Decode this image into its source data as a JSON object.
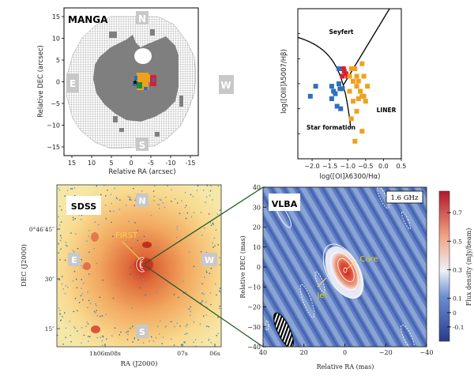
{
  "chart_data": [
    {
      "type": "heatmap",
      "panel": "manga",
      "label": "MANGA",
      "xlabel": "Relative RA (arcsec)",
      "ylabel": "Relative DEC (arcsec)",
      "xlim": [
        17,
        -17
      ],
      "ylim": [
        -17,
        17
      ],
      "xticks": [
        15,
        10,
        5,
        0,
        -5,
        -10,
        -15
      ],
      "yticks": [
        15,
        10,
        5,
        0,
        -5,
        -10,
        -15
      ],
      "compass": {
        "N": "N",
        "S": "S",
        "E": "E",
        "W": "W"
      },
      "classification_colors": {
        "seyfert": "#d62035",
        "liner": "#f0a11c",
        "star_formation": "#2f6fbf",
        "composite": "#1f8a3a"
      },
      "center_marker": "star"
    },
    {
      "type": "scatter",
      "panel": "bpt",
      "xlabel": "log([OI]λ6300/Hα)",
      "ylabel": "log([OIII]λ5007/Hβ)",
      "xlim": [
        -2.4,
        0.5
      ],
      "ylim": [
        -1.5,
        1.5
      ],
      "xticks": [
        -2.0,
        -1.5,
        -1.0,
        -0.5,
        0.0,
        0.5
      ],
      "region_labels": [
        "Seyfert",
        "LINER",
        "Star formation"
      ],
      "series": [
        {
          "name": "Star formation",
          "color": "#2f6fbf",
          "points": [
            [
              -2.05,
              -0.25
            ],
            [
              -1.9,
              -0.05
            ],
            [
              -1.45,
              -0.05
            ],
            [
              -1.4,
              -0.15
            ],
            [
              -1.35,
              -0.2
            ],
            [
              -1.45,
              -0.3
            ],
            [
              -1.25,
              0.0
            ],
            [
              -1.3,
              -0.45
            ],
            [
              -1.2,
              -0.5
            ],
            [
              -1.25,
              0.3
            ],
            [
              -1.15,
              -0.1
            ],
            [
              -1.22,
              -0.1
            ]
          ]
        },
        {
          "name": "Seyfert",
          "color": "#d62035",
          "points": [
            [
              -1.1,
              0.25
            ],
            [
              -1.05,
              0.2
            ],
            [
              -1.15,
              0.15
            ],
            [
              -1.0,
              0.15
            ],
            [
              -1.12,
              0.3
            ]
          ]
        },
        {
          "name": "LINER",
          "color": "#f0a11c",
          "points": [
            [
              -0.9,
              0.3
            ],
            [
              -0.8,
              0.3
            ],
            [
              -0.6,
              0.4
            ],
            [
              -0.75,
              0.15
            ],
            [
              -0.55,
              0.15
            ],
            [
              -0.85,
              0.05
            ],
            [
              -0.7,
              0.05
            ],
            [
              -0.75,
              -0.05
            ],
            [
              -0.45,
              -0.05
            ],
            [
              -0.65,
              -0.15
            ],
            [
              -0.6,
              -0.25
            ],
            [
              -0.55,
              -0.25
            ],
            [
              -0.7,
              -0.3
            ],
            [
              -0.85,
              -0.35
            ],
            [
              -0.5,
              -0.35
            ],
            [
              -0.75,
              -0.55
            ],
            [
              -0.9,
              -0.7
            ],
            [
              -0.6,
              -0.95
            ],
            [
              -0.8,
              -1.15
            ],
            [
              -0.95,
              -0.15
            ],
            [
              -0.95,
              0.15
            ]
          ]
        }
      ],
      "demarcation_curves": [
        "Kewley star-formation curve",
        "Seyfert/LINER line"
      ]
    },
    {
      "type": "heatmap",
      "panel": "sdss",
      "label": "SDSS",
      "xlabel": "RA (J2000)",
      "ylabel": "DEC (J2000)",
      "xticks": [
        "1h06m08s",
        "07s",
        "06s"
      ],
      "yticks": [
        "0°46′45″",
        "30″",
        "15″"
      ],
      "annotation": "FIRST",
      "compass": {
        "N": "N",
        "S": "S",
        "E": "E",
        "W": "W"
      }
    },
    {
      "type": "heatmap",
      "panel": "vlba",
      "label": "VLBA",
      "frequency": "1.6 GHz",
      "xlabel": "Relative RA (mas)",
      "ylabel": "Relative DEC (mas)",
      "xlim": [
        40,
        -40
      ],
      "ylim": [
        -40,
        40
      ],
      "xticks": [
        40,
        20,
        0,
        -20,
        -40
      ],
      "yticks": [
        40,
        30,
        20,
        10,
        0,
        -10,
        -20,
        -30,
        -40
      ],
      "annotations": [
        "Core",
        "Jet"
      ],
      "colorbar": {
        "label": "Flux density (mJy/beam)",
        "ticks": [
          0.7,
          0.5,
          0.3,
          0.1,
          0,
          -0.1
        ],
        "range": [
          -0.2,
          0.85
        ]
      }
    }
  ]
}
